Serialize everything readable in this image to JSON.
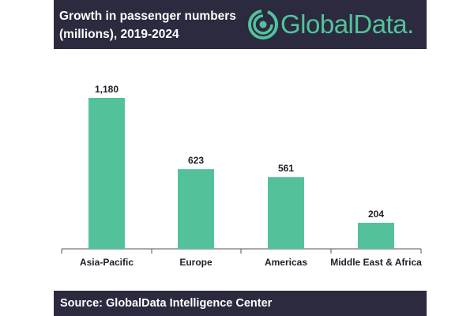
{
  "header": {
    "title": "Growth in passenger numbers (millions), 2019-2024",
    "logo_text": "GlobalData."
  },
  "footer": {
    "source": "Source:  GlobalData Intelligence Center"
  },
  "colors": {
    "bar": "#53c29b",
    "header_bg": "#2b2a3f",
    "logo": "#53c29b"
  },
  "chart_data": {
    "type": "bar",
    "title": "Growth in passenger numbers (millions), 2019-2024",
    "categories": [
      "Asia-Pacific",
      "Europe",
      "Americas",
      "Middle East & Africa"
    ],
    "values": [
      1180,
      623,
      561,
      204
    ],
    "data_labels": [
      "1,180",
      "623",
      "561",
      "204"
    ],
    "xlabel": "",
    "ylabel": "",
    "ylim": [
      0,
      1180
    ],
    "grid": false,
    "legend": "none"
  }
}
